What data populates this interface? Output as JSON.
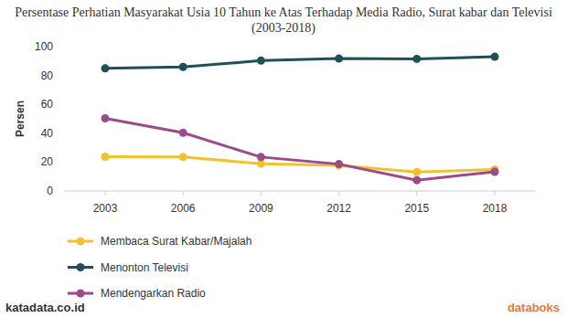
{
  "chart_data": {
    "type": "line",
    "title": "Persentase Perhatian Masyarakat Usia 10 Tahun ke Atas Terhadap Media Radio, Surat kabar dan Televisi (2003-2018)",
    "y_label": "Persen",
    "categories": [
      "2003",
      "2006",
      "2009",
      "2012",
      "2015",
      "2018"
    ],
    "series": [
      {
        "name": "Membaca Surat Kabar/Majalah",
        "color": "#f2c12e",
        "marker": "circle",
        "values": [
          23.7,
          23.5,
          18.9,
          17.7,
          13.1,
          14.9
        ]
      },
      {
        "name": "Menonton Televisi",
        "color": "#1d5059",
        "marker": "circle",
        "values": [
          84.9,
          85.9,
          90.3,
          91.7,
          91.5,
          93.0
        ]
      },
      {
        "name": "Mendengarkan Radio",
        "color": "#9c4a8b",
        "marker": "circle",
        "values": [
          50.3,
          40.3,
          23.5,
          18.6,
          7.5,
          13.3
        ]
      }
    ],
    "ylim": [
      0,
      100
    ],
    "yticks": [
      0,
      20,
      40,
      60,
      80,
      100
    ],
    "grid": false,
    "legend": "bottom",
    "annotations": [
      "katadata.co.id",
      "databoks"
    ]
  }
}
